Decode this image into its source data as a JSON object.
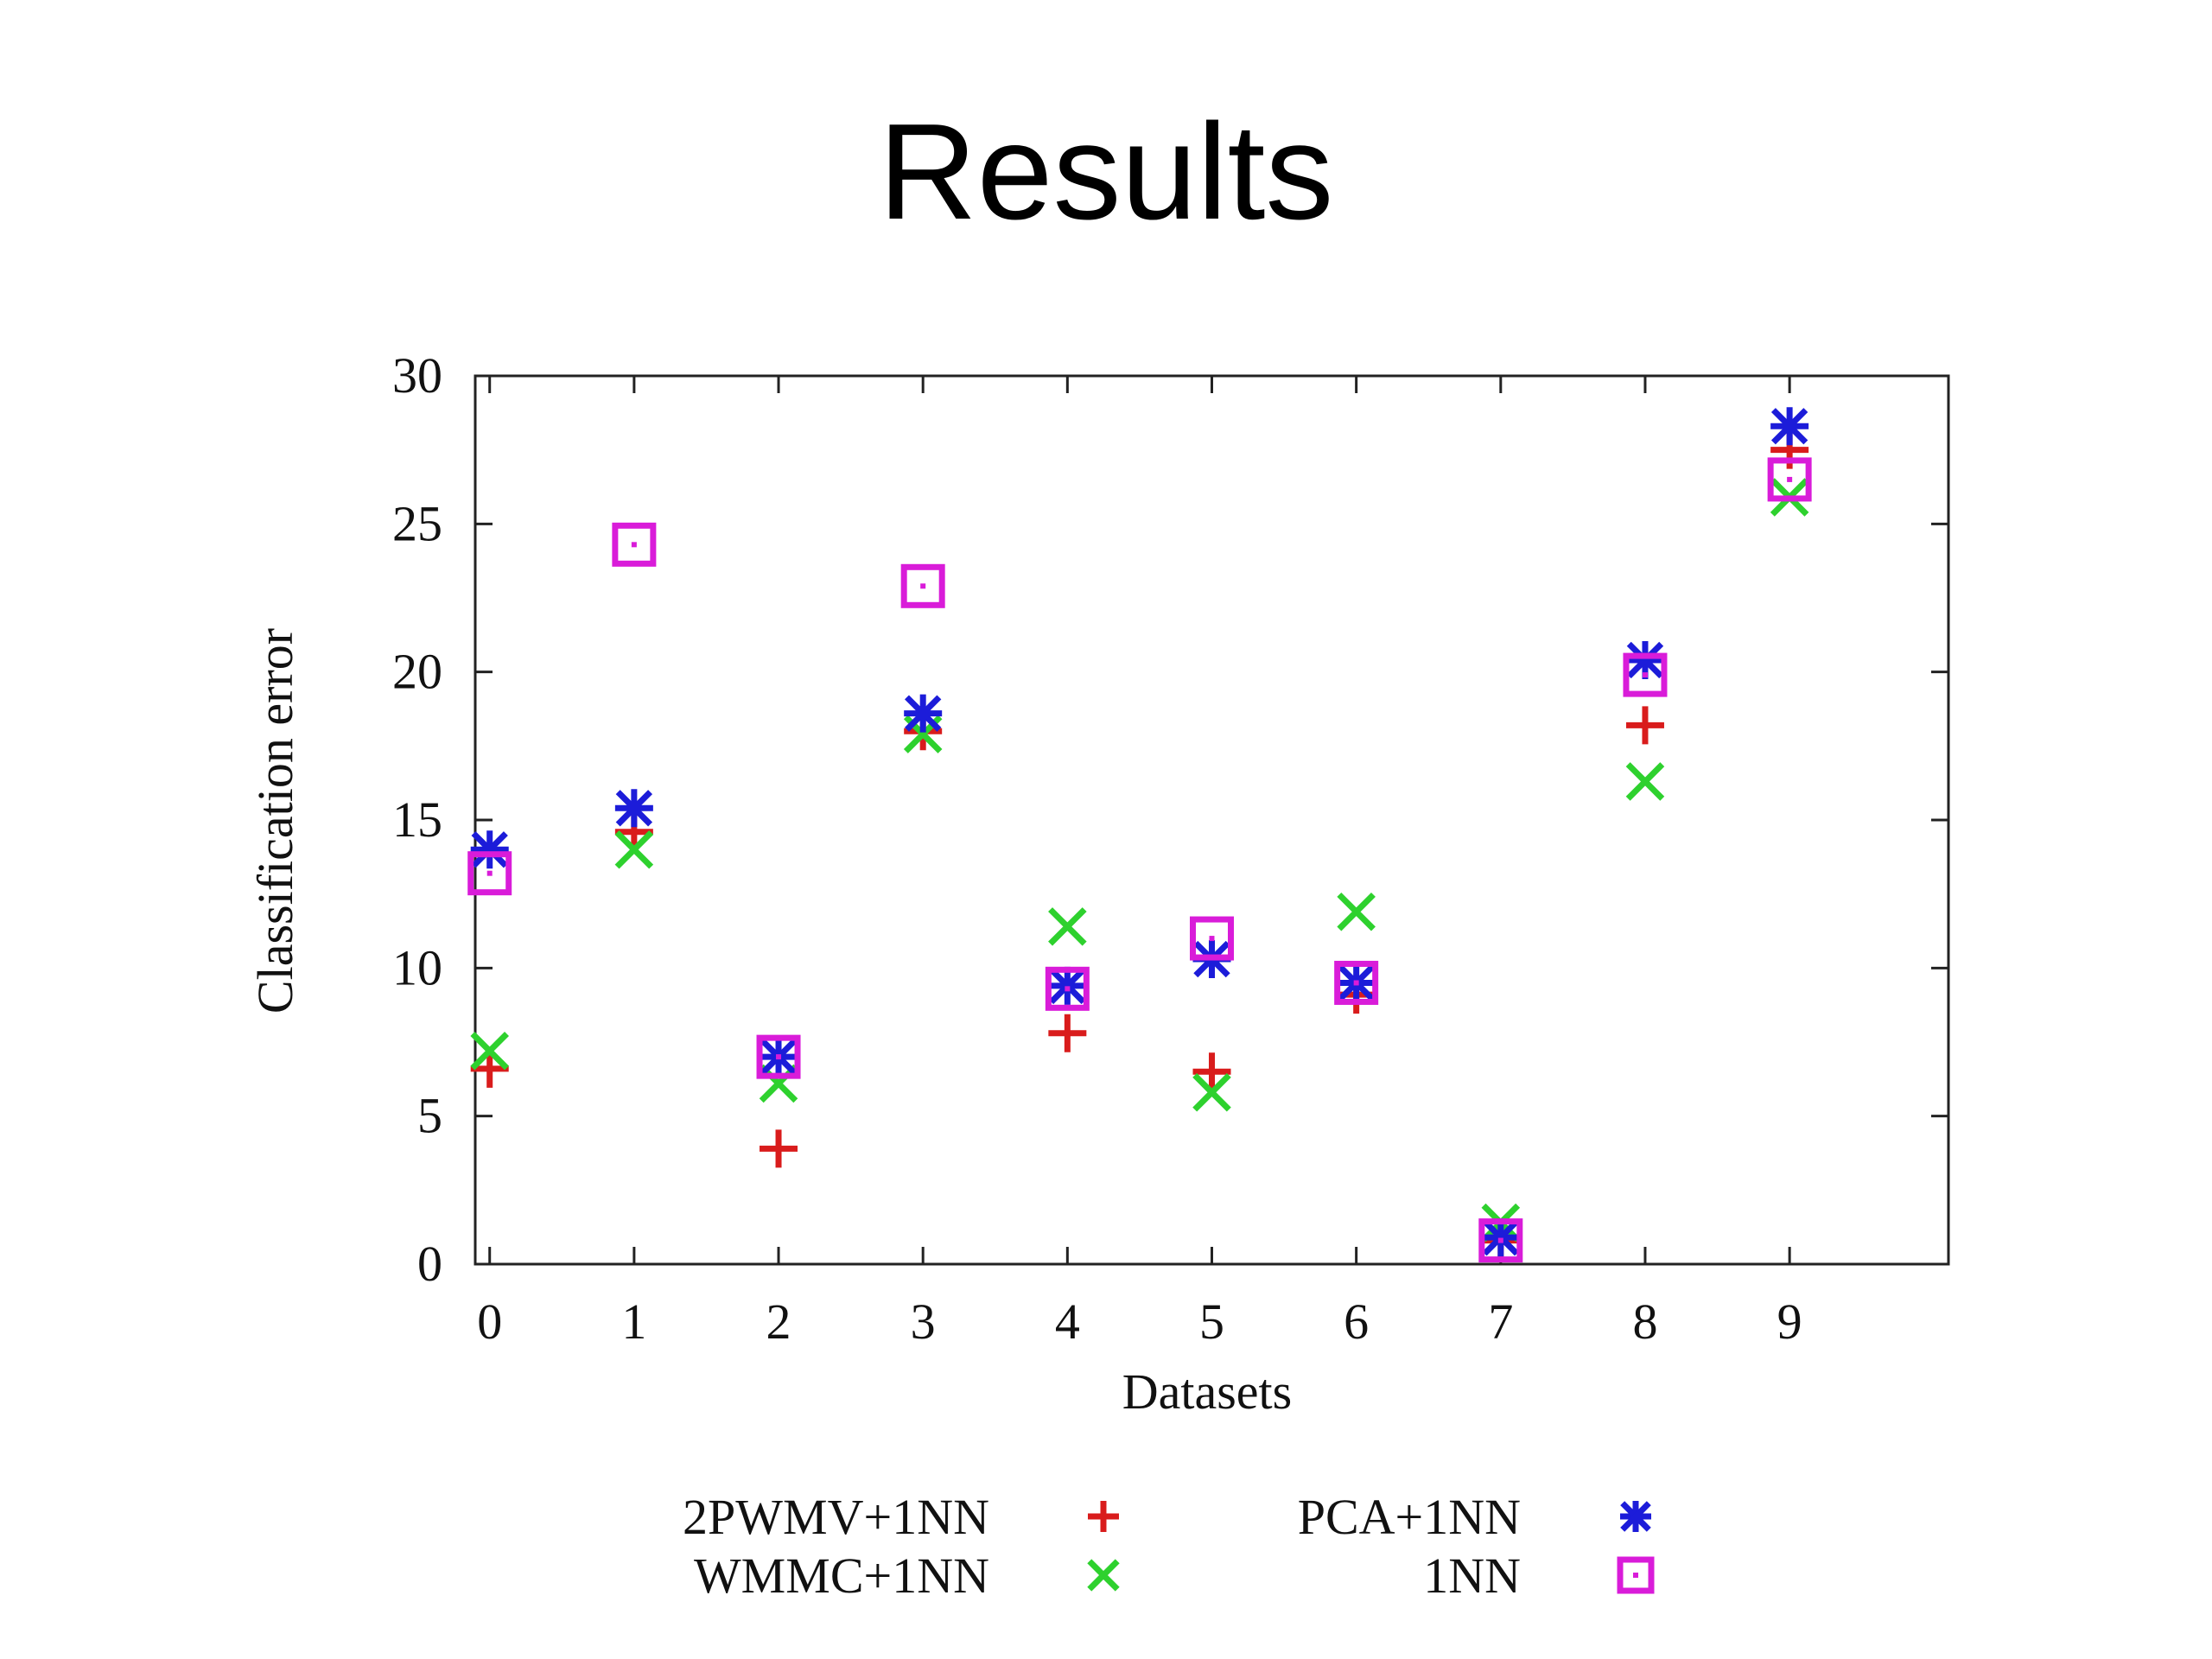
{
  "slide": {
    "title": "Results"
  },
  "chart_data": {
    "type": "scatter",
    "title": "",
    "xlabel": "Datasets",
    "ylabel": "Classification error",
    "xlim": [
      -0.1,
      10.1
    ],
    "ylim": [
      0,
      30
    ],
    "x_ticks": [
      0,
      1,
      2,
      3,
      4,
      5,
      6,
      7,
      8,
      9
    ],
    "y_ticks": [
      0,
      5,
      10,
      15,
      20,
      25,
      30
    ],
    "grid": false,
    "legend_position": "bottom",
    "x": [
      0,
      1,
      2,
      3,
      4,
      5,
      6,
      7,
      8,
      9
    ],
    "series": [
      {
        "name": "2PWMV+1NN",
        "marker": "plus",
        "color": "#d91c1c",
        "values": [
          6.6,
          14.6,
          3.9,
          18.0,
          7.8,
          6.5,
          9.1,
          0.8,
          18.2,
          27.5
        ]
      },
      {
        "name": "WMMC+1NN",
        "marker": "cross",
        "color": "#2ed12e",
        "values": [
          7.2,
          14.0,
          6.1,
          17.9,
          11.4,
          5.8,
          11.9,
          1.4,
          16.3,
          25.9
        ]
      },
      {
        "name": "PCA+1NN",
        "marker": "star",
        "color": "#1c1cd9",
        "values": [
          14.0,
          15.4,
          7.0,
          18.6,
          9.4,
          10.3,
          9.5,
          0.9,
          20.4,
          28.3
        ]
      },
      {
        "name": "1NN",
        "marker": "box",
        "color": "#d91cd9",
        "values": [
          13.2,
          24.3,
          7.0,
          22.9,
          9.3,
          11.0,
          9.5,
          0.8,
          19.9,
          26.5
        ]
      }
    ]
  }
}
